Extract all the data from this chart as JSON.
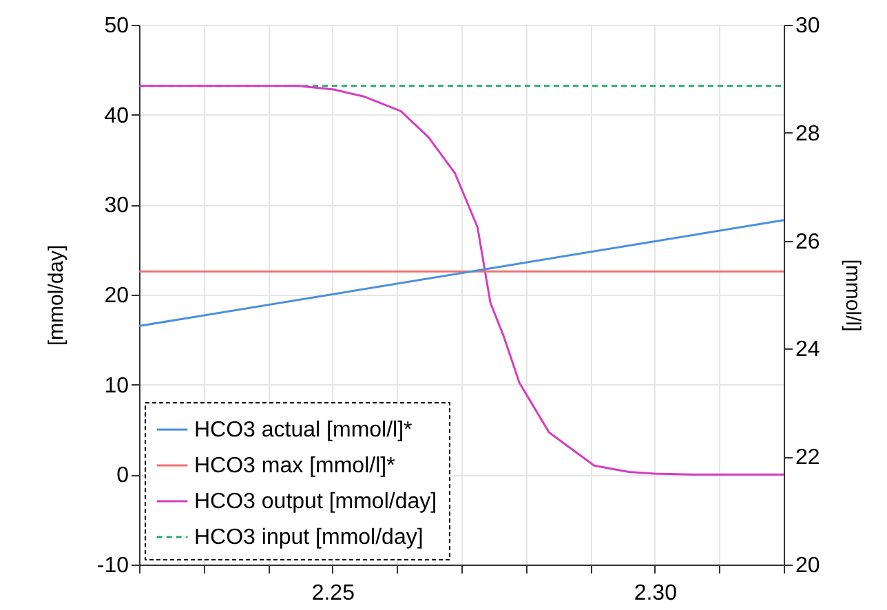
{
  "chart_data": {
    "type": "line",
    "ylabel": "[mmol/day]",
    "y2label": "[mmol/l]",
    "x": [
      2.22,
      2.32
    ],
    "series": [
      {
        "name": "HCO3 actual [mmol/l]*",
        "color": "#4a8fe0",
        "axis": "y2",
        "values": [
          24.42,
          26.38
        ]
      },
      {
        "name": "HCO3 max [mmol/l]*",
        "color": "#f07272",
        "axis": "y2",
        "values": [
          25.43,
          25.43
        ]
      },
      {
        "name": "HCO3 output [mmol/day]",
        "color": "#d63cc0",
        "x": [
          2.22,
          2.2447,
          2.2502,
          2.255,
          2.2606,
          2.2649,
          2.269,
          2.2725,
          2.2745,
          2.2766,
          2.279,
          2.2836,
          2.287,
          2.2906,
          2.296,
          2.3,
          2.3057,
          2.32
        ],
        "values": [
          43.2,
          43.2,
          42.8,
          42.0,
          40.4,
          37.5,
          33.5,
          27.5,
          19.1,
          15.3,
          10.2,
          4.7,
          2.9,
          1.0,
          0.3,
          0.1,
          0,
          0
        ]
      },
      {
        "name": "HCO3 input [mmol/day]",
        "color": "#2ca870",
        "line_style": "dashed",
        "values": [
          43.2,
          43.2
        ]
      }
    ],
    "xlim": [
      2.22,
      2.32
    ],
    "xticks": [
      {
        "value": 2.22,
        "label": null
      },
      {
        "value": 2.23,
        "label": null
      },
      {
        "value": 2.24,
        "label": null
      },
      2.25,
      {
        "value": 2.26,
        "label": null
      },
      {
        "value": 2.27,
        "label": null
      },
      {
        "value": 2.28,
        "label": null
      },
      {
        "value": 2.29,
        "label": null
      },
      {
        "value": 2.3,
        "label": "2.30"
      },
      {
        "value": 2.31,
        "label": null
      },
      {
        "value": 2.32,
        "label": null
      }
    ],
    "ylim": [
      -10,
      50
    ],
    "yticks": [
      -10,
      0,
      10,
      20,
      30,
      40,
      50
    ],
    "y2lim": [
      20,
      30
    ],
    "y2ticks": [
      20,
      22,
      24,
      26,
      28,
      30
    ],
    "grid": true,
    "legend": "bottom left",
    "line_style": "solid"
  }
}
